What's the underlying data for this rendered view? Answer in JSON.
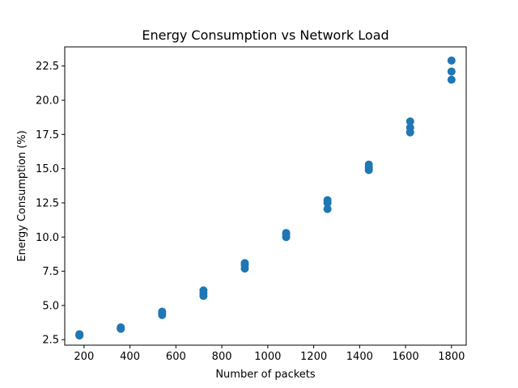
{
  "chart_data": {
    "type": "scatter",
    "title": "Energy Consumption vs Network Load",
    "xlabel": "Number of packets",
    "ylabel": "Energy Consumption (%)",
    "xlim": [
      116,
      1864
    ],
    "ylim": [
      2.1,
      23.9
    ],
    "x_ticks": [
      200,
      400,
      600,
      800,
      1000,
      1200,
      1400,
      1600,
      1800
    ],
    "x_tick_labels": [
      "200",
      "400",
      "600",
      "800",
      "1000",
      "1200",
      "1400",
      "1600",
      "1800"
    ],
    "y_ticks": [
      2.5,
      5.0,
      7.5,
      10.0,
      12.5,
      15.0,
      17.5,
      20.0,
      22.5
    ],
    "y_tick_labels": [
      "2.5",
      "5.0",
      "7.5",
      "10.0",
      "12.5",
      "15.0",
      "17.5",
      "20.0",
      "22.5"
    ],
    "grid": false,
    "marker_color": "#1f77b4",
    "points": [
      {
        "x": 180,
        "y": 2.8
      },
      {
        "x": 180,
        "y": 2.85
      },
      {
        "x": 180,
        "y": 2.9
      },
      {
        "x": 360,
        "y": 3.3
      },
      {
        "x": 360,
        "y": 3.35
      },
      {
        "x": 360,
        "y": 3.4
      },
      {
        "x": 540,
        "y": 4.3
      },
      {
        "x": 540,
        "y": 4.45
      },
      {
        "x": 540,
        "y": 4.55
      },
      {
        "x": 720,
        "y": 5.7
      },
      {
        "x": 720,
        "y": 5.9
      },
      {
        "x": 720,
        "y": 6.1
      },
      {
        "x": 900,
        "y": 7.7
      },
      {
        "x": 900,
        "y": 7.95
      },
      {
        "x": 900,
        "y": 8.1
      },
      {
        "x": 1080,
        "y": 10.0
      },
      {
        "x": 1080,
        "y": 10.2
      },
      {
        "x": 1080,
        "y": 10.3
      },
      {
        "x": 1260,
        "y": 12.05
      },
      {
        "x": 1260,
        "y": 12.5
      },
      {
        "x": 1260,
        "y": 12.7
      },
      {
        "x": 1440,
        "y": 14.9
      },
      {
        "x": 1440,
        "y": 15.1
      },
      {
        "x": 1440,
        "y": 15.3
      },
      {
        "x": 1620,
        "y": 17.65
      },
      {
        "x": 1620,
        "y": 18.0
      },
      {
        "x": 1620,
        "y": 18.45
      },
      {
        "x": 1800,
        "y": 21.5
      },
      {
        "x": 1800,
        "y": 22.1
      },
      {
        "x": 1800,
        "y": 22.9
      }
    ]
  }
}
